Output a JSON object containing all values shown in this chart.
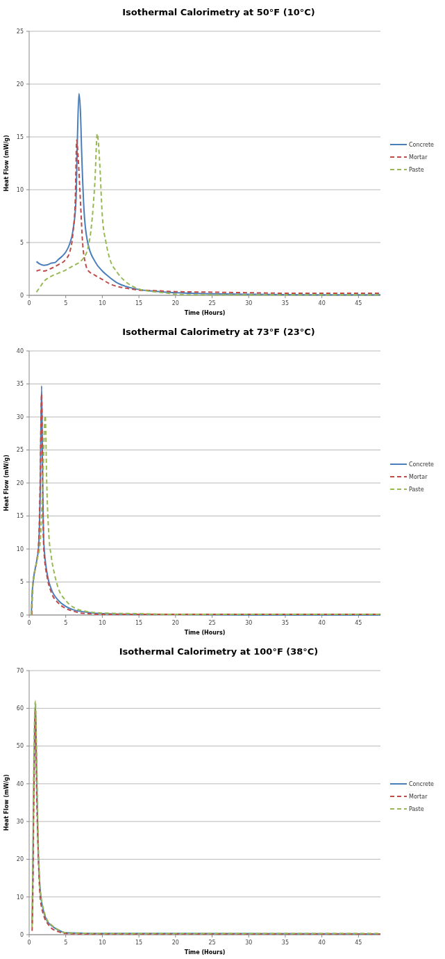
{
  "chart_data": [
    {
      "type": "line",
      "title": "Isothermal Calorimetry at 50°F (10°C)",
      "xlabel": "Time (Hours)",
      "ylabel": "Heat Flow (mW/g)",
      "xlim": [
        0,
        48
      ],
      "xticks": [
        0,
        5,
        10,
        15,
        20,
        25,
        30,
        35,
        40,
        45
      ],
      "ylim": [
        0,
        25
      ],
      "yticks": [
        0,
        5,
        10,
        15,
        20,
        25
      ],
      "grid": "y",
      "legend": "right",
      "series": [
        {
          "name": "Concrete",
          "color": "#4a7ebb",
          "line_style": "solid",
          "x": [
            1,
            1.5,
            2,
            2.5,
            3,
            3.5,
            4,
            4.5,
            5,
            5.5,
            6,
            6.4,
            6.6,
            6.8,
            7,
            7.2,
            7.5,
            8,
            9,
            10,
            11,
            12,
            13,
            14,
            15,
            17,
            20,
            25,
            30,
            35,
            40,
            48
          ],
          "values": [
            3.2,
            2.95,
            2.85,
            2.9,
            3.05,
            3.1,
            3.4,
            3.7,
            4.1,
            4.8,
            6.2,
            9,
            15,
            19.1,
            17.5,
            13,
            8,
            5,
            3.2,
            2.3,
            1.7,
            1.2,
            0.9,
            0.7,
            0.55,
            0.4,
            0.25,
            0.15,
            0.1,
            0.07,
            0.05,
            0.05
          ]
        },
        {
          "name": "Mortar",
          "color": "#be4b48",
          "line_style": "dashed",
          "x": [
            1,
            1.5,
            2,
            3,
            4,
            5,
            5.5,
            6,
            6.3,
            6.5,
            6.7,
            7,
            7.3,
            7.7,
            8,
            9,
            10,
            11,
            12,
            13,
            14,
            15,
            17,
            20,
            25,
            30,
            35,
            40,
            48
          ],
          "values": [
            2.3,
            2.4,
            2.3,
            2.55,
            2.9,
            3.4,
            4,
            6,
            9,
            14.7,
            13,
            9,
            5,
            3,
            2.4,
            1.9,
            1.5,
            1.1,
            0.85,
            0.7,
            0.6,
            0.5,
            0.45,
            0.35,
            0.3,
            0.25,
            0.2,
            0.2,
            0.2
          ]
        },
        {
          "name": "Paste",
          "color": "#98b954",
          "line_style": "dashed",
          "x": [
            1,
            1.5,
            2,
            3,
            4,
            5,
            6,
            7,
            7.5,
            8,
            8.5,
            9,
            9.3,
            9.6,
            10,
            10.5,
            11,
            12,
            13,
            14,
            15,
            17,
            19,
            20,
            22,
            25,
            30,
            40,
            48
          ],
          "values": [
            0.3,
            0.8,
            1.3,
            1.8,
            2.1,
            2.4,
            2.8,
            3.2,
            3.6,
            4.4,
            6.5,
            11,
            15.3,
            13,
            7.5,
            5,
            3.5,
            2.2,
            1.4,
            0.9,
            0.6,
            0.35,
            0.2,
            0.1,
            0.05,
            0.05,
            0.05,
            0.05,
            0.05
          ]
        }
      ]
    },
    {
      "type": "line",
      "title": "Isothermal Calorimetry at 73°F (23°C)",
      "xlabel": "Time (Hours)",
      "ylabel": "Heat Flow (mW/g)",
      "xlim": [
        0,
        48
      ],
      "xticks": [
        0,
        5,
        10,
        15,
        20,
        25,
        30,
        35,
        40,
        45
      ],
      "ylim": [
        0,
        40
      ],
      "yticks": [
        0,
        5,
        10,
        15,
        20,
        25,
        30,
        35,
        40
      ],
      "grid": "y",
      "legend": "right",
      "series": [
        {
          "name": "Concrete",
          "color": "#4a7ebb",
          "line_style": "solid",
          "x": [
            0.3,
            0.4,
            0.6,
            1,
            1.3,
            1.5,
            1.7,
            1.85,
            2,
            2.5,
            3,
            4,
            5,
            6,
            8,
            10,
            15,
            20,
            30,
            48
          ],
          "values": [
            0,
            3,
            5.5,
            8,
            10.5,
            18,
            34.7,
            20,
            11,
            6,
            4,
            2.2,
            1.3,
            0.8,
            0.4,
            0.2,
            0.1,
            0.1,
            0,
            0
          ]
        },
        {
          "name": "Mortar",
          "color": "#be4b48",
          "line_style": "dashed",
          "x": [
            0.35,
            0.5,
            0.6,
            1,
            1.3,
            1.5,
            1.7,
            1.85,
            2,
            2.5,
            3,
            4,
            5,
            6,
            7,
            8,
            10,
            15,
            48
          ],
          "values": [
            0,
            4.5,
            5.5,
            8,
            11,
            20,
            33.5,
            18,
            10,
            5.5,
            3.5,
            1.8,
            1,
            0.6,
            0.3,
            0.2,
            0.1,
            0.1,
            0.1
          ]
        },
        {
          "name": "Paste",
          "color": "#98b954",
          "line_style": "dashed",
          "x": [
            0.3,
            0.4,
            0.6,
            1,
            1.5,
            1.8,
            2.2,
            2.4,
            2.7,
            3,
            3.5,
            4,
            5,
            6,
            8,
            10,
            15,
            20,
            48
          ],
          "values": [
            0,
            3,
            5.5,
            8,
            11,
            18,
            30.2,
            20,
            12,
            9,
            6,
            4,
            2.2,
            1.2,
            0.5,
            0.3,
            0.2,
            0.1,
            0.1
          ]
        }
      ]
    },
    {
      "type": "line",
      "title": "Isothermal Calorimetry at 100°F (38°C)",
      "xlabel": "Time (Hours)",
      "ylabel": "Heat Flow (mW/g)",
      "xlim": [
        0,
        48
      ],
      "xticks": [
        0,
        5,
        10,
        15,
        20,
        25,
        30,
        35,
        40,
        45
      ],
      "ylim": [
        0,
        70
      ],
      "yticks": [
        0,
        10,
        20,
        30,
        40,
        50,
        60,
        70
      ],
      "grid": "y",
      "legend": "right",
      "series": [
        {
          "name": "Concrete",
          "color": "#4a7ebb",
          "line_style": "solid",
          "x": [
            0.4,
            0.5,
            0.6,
            0.75,
            0.85,
            1,
            1.2,
            1.5,
            2,
            2.5,
            3,
            4,
            5,
            7,
            10,
            20,
            48
          ],
          "values": [
            3,
            15,
            35,
            55,
            61,
            45,
            25,
            12,
            6,
            3.5,
            2.5,
            1.2,
            0.5,
            0.4,
            0.3,
            0.3,
            0.2
          ]
        },
        {
          "name": "Mortar",
          "color": "#be4b48",
          "line_style": "dashed",
          "x": [
            0.4,
            0.5,
            0.6,
            0.75,
            0.85,
            1,
            1.2,
            1.5,
            2,
            2.5,
            3,
            4,
            5,
            7,
            10,
            48
          ],
          "values": [
            1,
            10,
            30,
            50,
            60,
            40,
            24,
            10,
            5,
            3,
            1.8,
            0.8,
            0.3,
            0.2,
            0.2,
            0.2
          ]
        },
        {
          "name": "Paste",
          "color": "#98b954",
          "line_style": "dashed",
          "x": [
            0.4,
            0.5,
            0.6,
            0.75,
            0.85,
            1,
            1.2,
            1.5,
            2,
            2.5,
            3,
            4,
            5,
            7,
            10,
            20,
            48
          ],
          "values": [
            2,
            20,
            40,
            58,
            62,
            50,
            28,
            12,
            6.5,
            3.8,
            2.7,
            1.3,
            0.5,
            0.4,
            0.3,
            0.3,
            0.3
          ]
        }
      ]
    }
  ]
}
